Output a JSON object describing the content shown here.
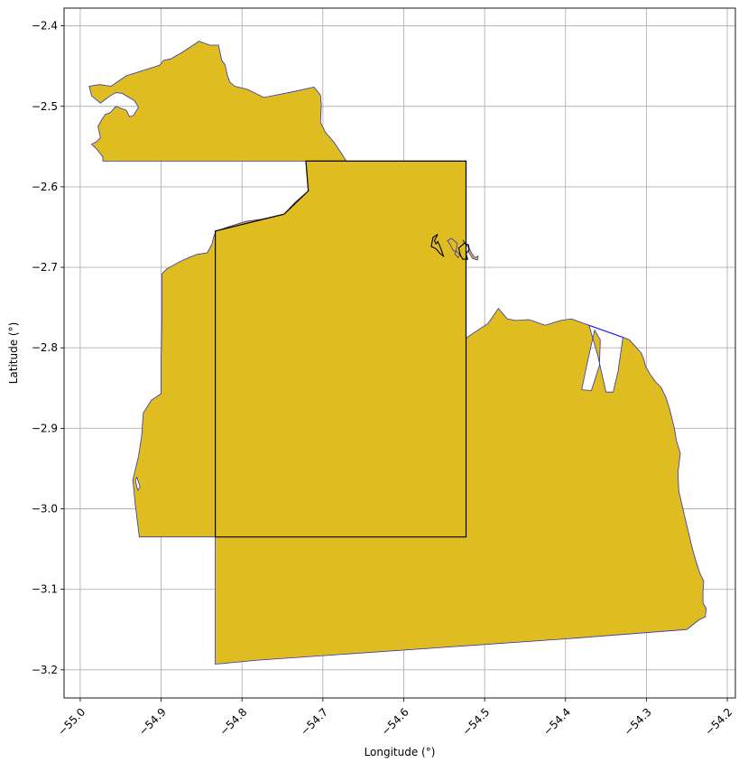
{
  "chart_data": {
    "type": "map",
    "xlabel": "Longitude (°)",
    "ylabel": "Latitude (°)",
    "xlim": [
      -55.02,
      -54.19
    ],
    "ylim": [
      -3.235,
      -2.378
    ],
    "grid": true,
    "x_ticks": [
      -55.0,
      -54.9,
      -54.8,
      -54.7,
      -54.6,
      -54.5,
      -54.4,
      -54.3,
      -54.2
    ],
    "y_ticks": [
      -2.4,
      -2.5,
      -2.6,
      -2.7,
      -2.8,
      -2.9,
      -3.0,
      -3.1,
      -3.2
    ],
    "x_tick_labels": [
      "−55.0",
      "−54.9",
      "−54.8",
      "−54.7",
      "−54.6",
      "−54.5",
      "−54.4",
      "−54.3",
      "−54.2"
    ],
    "y_tick_labels": [
      "−2.4",
      "−2.5",
      "−2.6",
      "−2.7",
      "−2.8",
      "−2.9",
      "−3.0",
      "−3.1",
      "−3.2"
    ],
    "colors": {
      "fill": "#dfbc20",
      "outline": "#3333aa",
      "boundary": "#000000",
      "background": "#ffffff"
    },
    "region": {
      "outer": [
        [
          -54.972,
          -2.568
        ],
        [
          -54.972,
          -2.563
        ],
        [
          -54.979,
          -2.554
        ],
        [
          -54.986,
          -2.547
        ],
        [
          -54.98,
          -2.544
        ],
        [
          -54.975,
          -2.539
        ],
        [
          -54.978,
          -2.525
        ],
        [
          -54.973,
          -2.516
        ],
        [
          -54.969,
          -2.51
        ],
        [
          -54.963,
          -2.508
        ],
        [
          -54.956,
          -2.5
        ],
        [
          -54.943,
          -2.505
        ],
        [
          -54.939,
          -2.513
        ],
        [
          -54.934,
          -2.511
        ],
        [
          -54.928,
          -2.501
        ],
        [
          -54.933,
          -2.493
        ],
        [
          -54.948,
          -2.484
        ],
        [
          -54.956,
          -2.483
        ],
        [
          -54.963,
          -2.487
        ],
        [
          -54.975,
          -2.496
        ],
        [
          -54.986,
          -2.487
        ],
        [
          -54.989,
          -2.475
        ],
        [
          -54.976,
          -2.473
        ],
        [
          -54.962,
          -2.475
        ],
        [
          -54.943,
          -2.462
        ],
        [
          -54.924,
          -2.456
        ],
        [
          -54.902,
          -2.449
        ],
        [
          -54.897,
          -2.443
        ],
        [
          -54.888,
          -2.441
        ],
        [
          -54.874,
          -2.433
        ],
        [
          -54.853,
          -2.419
        ],
        [
          -54.84,
          -2.424
        ],
        [
          -54.829,
          -2.424
        ],
        [
          -54.825,
          -2.443
        ],
        [
          -54.821,
          -2.448
        ],
        [
          -54.818,
          -2.462
        ],
        [
          -54.815,
          -2.47
        ],
        [
          -54.809,
          -2.475
        ],
        [
          -54.793,
          -2.479
        ],
        [
          -54.773,
          -2.489
        ],
        [
          -54.733,
          -2.481
        ],
        [
          -54.711,
          -2.476
        ],
        [
          -54.703,
          -2.486
        ],
        [
          -54.702,
          -2.498
        ],
        [
          -54.703,
          -2.52
        ],
        [
          -54.697,
          -2.532
        ],
        [
          -54.686,
          -2.545
        ],
        [
          -54.678,
          -2.557
        ],
        [
          -54.671,
          -2.568
        ],
        [
          -54.523,
          -2.568
        ],
        [
          -54.523,
          -2.788
        ],
        [
          -54.513,
          -2.781
        ],
        [
          -54.496,
          -2.77
        ],
        [
          -54.483,
          -2.751
        ],
        [
          -54.472,
          -2.764
        ],
        [
          -54.462,
          -2.766
        ],
        [
          -54.445,
          -2.765
        ],
        [
          -54.425,
          -2.772
        ],
        [
          -54.406,
          -2.766
        ],
        [
          -54.393,
          -2.764
        ],
        [
          -54.379,
          -2.769
        ],
        [
          -54.371,
          -2.772
        ],
        [
          -54.36,
          -2.81
        ],
        [
          -54.35,
          -2.855
        ],
        [
          -54.341,
          -2.855
        ],
        [
          -54.335,
          -2.829
        ],
        [
          -54.329,
          -2.787
        ],
        [
          -54.321,
          -2.79
        ],
        [
          -54.313,
          -2.799
        ],
        [
          -54.306,
          -2.807
        ],
        [
          -54.303,
          -2.815
        ],
        [
          -54.301,
          -2.823
        ],
        [
          -54.296,
          -2.832
        ],
        [
          -54.289,
          -2.842
        ],
        [
          -54.282,
          -2.849
        ],
        [
          -54.276,
          -2.861
        ],
        [
          -54.271,
          -2.877
        ],
        [
          -54.265,
          -2.902
        ],
        [
          -54.263,
          -2.915
        ],
        [
          -54.258,
          -2.931
        ],
        [
          -54.261,
          -2.955
        ],
        [
          -54.26,
          -2.978
        ],
        [
          -54.252,
          -3.012
        ],
        [
          -54.244,
          -3.046
        ],
        [
          -54.24,
          -3.061
        ],
        [
          -54.234,
          -3.08
        ],
        [
          -54.229,
          -3.09
        ],
        [
          -54.23,
          -3.103
        ],
        [
          -54.23,
          -3.117
        ],
        [
          -54.226,
          -3.124
        ],
        [
          -54.227,
          -3.134
        ],
        [
          -54.235,
          -3.138
        ],
        [
          -54.25,
          -3.15
        ],
        [
          -54.405,
          -3.162
        ],
        [
          -54.78,
          -3.188
        ],
        [
          -54.833,
          -3.193
        ],
        [
          -54.833,
          -3.035
        ],
        [
          -54.927,
          -3.035
        ],
        [
          -54.932,
          -2.995
        ],
        [
          -54.935,
          -2.964
        ],
        [
          -54.928,
          -2.935
        ],
        [
          -54.924,
          -2.908
        ],
        [
          -54.922,
          -2.881
        ],
        [
          -54.912,
          -2.865
        ],
        [
          -54.9,
          -2.857
        ],
        [
          -54.9,
          -2.815
        ],
        [
          -54.899,
          -2.76
        ],
        [
          -54.899,
          -2.708
        ],
        [
          -54.893,
          -2.702
        ],
        [
          -54.877,
          -2.693
        ],
        [
          -54.866,
          -2.688
        ],
        [
          -54.856,
          -2.684
        ],
        [
          -54.843,
          -2.682
        ],
        [
          -54.837,
          -2.671
        ],
        [
          -54.835,
          -2.662
        ],
        [
          -54.832,
          -2.655
        ],
        [
          -54.815,
          -2.649
        ],
        [
          -54.795,
          -2.643
        ],
        [
          -54.775,
          -2.64
        ],
        [
          -54.748,
          -2.634
        ],
        [
          -54.734,
          -2.619
        ],
        [
          -54.718,
          -2.605
        ],
        [
          -54.72,
          -2.581
        ],
        [
          -54.721,
          -2.568
        ]
      ],
      "holes": [
        [
          [
            -54.93,
            -2.961
          ],
          [
            -54.926,
            -2.973
          ],
          [
            -54.929,
            -2.977
          ],
          [
            -54.932,
            -2.964
          ]
        ],
        [
          [
            -54.364,
            -2.778
          ],
          [
            -54.373,
            -2.818
          ],
          [
            -54.38,
            -2.852
          ],
          [
            -54.368,
            -2.853
          ],
          [
            -54.358,
            -2.822
          ],
          [
            -54.357,
            -2.79
          ]
        ]
      ],
      "islands": [
        [
          [
            -54.531,
            -2.684
          ],
          [
            -54.534,
            -2.681
          ],
          [
            -54.539,
            -2.679
          ],
          [
            -54.541,
            -2.675
          ],
          [
            -54.543,
            -2.671
          ],
          [
            -54.546,
            -2.667
          ],
          [
            -54.541,
            -2.664
          ],
          [
            -54.534,
            -2.67
          ],
          [
            -54.535,
            -2.679
          ],
          [
            -54.537,
            -2.683
          ],
          [
            -54.533,
            -2.688
          ],
          [
            -54.53,
            -2.684
          ]
        ],
        [
          [
            -54.515,
            -2.684
          ],
          [
            -54.522,
            -2.672
          ],
          [
            -54.527,
            -2.666
          ],
          [
            -54.525,
            -2.67
          ],
          [
            -54.52,
            -2.675
          ],
          [
            -54.52,
            -2.681
          ],
          [
            -54.515,
            -2.689
          ],
          [
            -54.509,
            -2.691
          ],
          [
            -54.508,
            -2.686
          ],
          [
            -54.512,
            -2.688
          ]
        ]
      ]
    },
    "boundary": {
      "polygon": [
        [
          -54.833,
          -3.035
        ],
        [
          -54.833,
          -2.655
        ],
        [
          -54.748,
          -2.634
        ],
        [
          -54.718,
          -2.605
        ],
        [
          -54.721,
          -2.568
        ],
        [
          -54.523,
          -2.568
        ],
        [
          -54.523,
          -3.035
        ]
      ],
      "small_outlines": [
        [
          [
            -54.558,
            -2.668
          ],
          [
            -54.56,
            -2.671
          ],
          [
            -54.562,
            -2.667
          ],
          [
            -54.558,
            -2.659
          ],
          [
            -54.564,
            -2.663
          ],
          [
            -54.566,
            -2.674
          ],
          [
            -54.56,
            -2.677
          ],
          [
            -54.555,
            -2.683
          ],
          [
            -54.551,
            -2.686
          ],
          [
            -54.553,
            -2.68
          ],
          [
            -54.556,
            -2.672
          ]
        ],
        [
          [
            -54.52,
            -2.672
          ],
          [
            -54.519,
            -2.678
          ],
          [
            -54.523,
            -2.683
          ],
          [
            -54.521,
            -2.69
          ],
          [
            -54.527,
            -2.69
          ],
          [
            -54.53,
            -2.685
          ],
          [
            -54.532,
            -2.676
          ],
          [
            -54.525,
            -2.67
          ]
        ]
      ]
    }
  }
}
